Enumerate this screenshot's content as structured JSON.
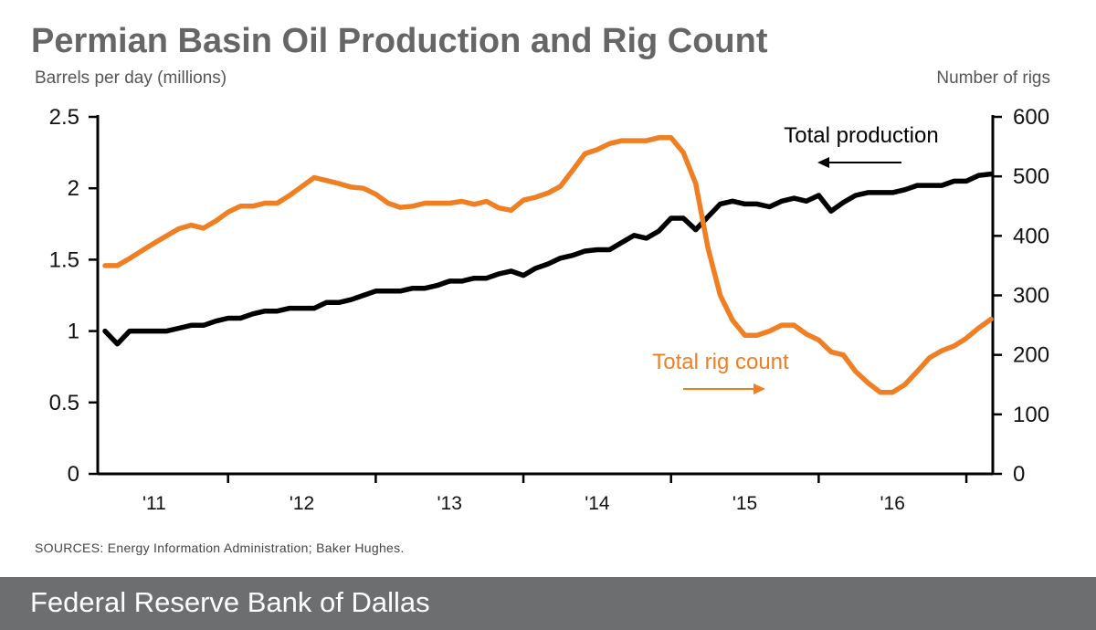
{
  "chart_data": {
    "type": "line",
    "title": "Permian Basin Oil Production and Rig Count",
    "ylabel_left": "Barrels per day (millions)",
    "ylabel_right": "Number of rigs",
    "xlim": [
      "2010-09",
      "2016-09"
    ],
    "x_tick_labels": [
      "'11",
      "'12",
      "'13",
      "'14",
      "'15",
      "'16"
    ],
    "x_tick_positions": [
      "2011-01",
      "2012-01",
      "2013-01",
      "2014-01",
      "2015-01",
      "2016-01"
    ],
    "y_left": {
      "lim": [
        0,
        2.5
      ],
      "ticks": [
        0,
        0.5,
        1,
        1.5,
        2,
        2.5
      ],
      "tick_labels": [
        "0",
        "0.5",
        "1",
        "1.5",
        "2",
        "2.5"
      ]
    },
    "y_right": {
      "lim": [
        0,
        600
      ],
      "ticks": [
        0,
        100,
        200,
        300,
        400,
        500,
        600
      ],
      "tick_labels": [
        "0",
        "100",
        "200",
        "300",
        "400",
        "500",
        "600"
      ]
    },
    "grid": false,
    "legend": "none",
    "series": [
      {
        "name": "Total production",
        "axis": "left",
        "color": "#000000",
        "x": [
          "2010-09",
          "2010-10",
          "2010-11",
          "2010-12",
          "2011-01",
          "2011-02",
          "2011-03",
          "2011-04",
          "2011-05",
          "2011-06",
          "2011-07",
          "2011-08",
          "2011-09",
          "2011-10",
          "2011-11",
          "2011-12",
          "2012-01",
          "2012-02",
          "2012-03",
          "2012-04",
          "2012-05",
          "2012-06",
          "2012-07",
          "2012-08",
          "2012-09",
          "2012-10",
          "2012-11",
          "2012-12",
          "2013-01",
          "2013-02",
          "2013-03",
          "2013-04",
          "2013-05",
          "2013-06",
          "2013-07",
          "2013-08",
          "2013-09",
          "2013-10",
          "2013-11",
          "2013-12",
          "2014-01",
          "2014-02",
          "2014-03",
          "2014-04",
          "2014-05",
          "2014-06",
          "2014-07",
          "2014-08",
          "2014-09",
          "2014-10",
          "2014-11",
          "2014-12",
          "2015-01",
          "2015-02",
          "2015-03",
          "2015-04",
          "2015-05",
          "2015-06",
          "2015-07",
          "2015-08",
          "2015-09",
          "2015-10",
          "2015-11",
          "2015-12",
          "2016-01",
          "2016-02",
          "2016-03",
          "2016-04",
          "2016-05",
          "2016-06",
          "2016-07",
          "2016-08",
          "2016-09"
        ],
        "values": [
          1.0,
          0.91,
          1.0,
          1.0,
          1.0,
          1.0,
          1.02,
          1.04,
          1.04,
          1.07,
          1.09,
          1.09,
          1.12,
          1.14,
          1.14,
          1.16,
          1.16,
          1.16,
          1.2,
          1.2,
          1.22,
          1.25,
          1.28,
          1.28,
          1.28,
          1.3,
          1.3,
          1.32,
          1.35,
          1.35,
          1.37,
          1.37,
          1.4,
          1.42,
          1.39,
          1.44,
          1.47,
          1.51,
          1.53,
          1.56,
          1.57,
          1.57,
          1.62,
          1.67,
          1.65,
          1.7,
          1.79,
          1.79,
          1.71,
          1.8,
          1.89,
          1.91,
          1.89,
          1.89,
          1.87,
          1.91,
          1.93,
          1.91,
          1.95,
          1.84,
          1.9,
          1.95,
          1.97,
          1.97,
          1.97,
          1.99,
          2.02,
          2.02,
          2.02,
          2.05,
          2.05,
          2.09,
          2.1
        ]
      },
      {
        "name": "Total rig count",
        "axis": "right",
        "color": "#f07f24",
        "x": [
          "2010-09",
          "2010-10",
          "2010-11",
          "2010-12",
          "2011-01",
          "2011-02",
          "2011-03",
          "2011-04",
          "2011-05",
          "2011-06",
          "2011-07",
          "2011-08",
          "2011-09",
          "2011-10",
          "2011-11",
          "2011-12",
          "2012-01",
          "2012-02",
          "2012-03",
          "2012-04",
          "2012-05",
          "2012-06",
          "2012-07",
          "2012-08",
          "2012-09",
          "2012-10",
          "2012-11",
          "2012-12",
          "2013-01",
          "2013-02",
          "2013-03",
          "2013-04",
          "2013-05",
          "2013-06",
          "2013-07",
          "2013-08",
          "2013-09",
          "2013-10",
          "2013-11",
          "2013-12",
          "2014-01",
          "2014-02",
          "2014-03",
          "2014-04",
          "2014-05",
          "2014-06",
          "2014-07",
          "2014-08",
          "2014-09",
          "2014-10",
          "2014-11",
          "2014-12",
          "2015-01",
          "2015-02",
          "2015-03",
          "2015-04",
          "2015-05",
          "2015-06",
          "2015-07",
          "2015-08",
          "2015-09",
          "2015-10",
          "2015-11",
          "2015-12",
          "2016-01",
          "2016-02",
          "2016-03",
          "2016-04",
          "2016-05",
          "2016-06",
          "2016-07",
          "2016-08",
          "2016-09"
        ],
        "values": [
          350,
          350,
          362,
          375,
          388,
          400,
          412,
          418,
          413,
          425,
          440,
          450,
          450,
          455,
          455,
          468,
          483,
          498,
          493,
          488,
          482,
          480,
          470,
          455,
          448,
          450,
          455,
          455,
          455,
          458,
          453,
          458,
          447,
          443,
          460,
          465,
          472,
          483,
          510,
          538,
          545,
          555,
          560,
          560,
          560,
          565,
          565,
          540,
          488,
          380,
          300,
          258,
          233,
          233,
          240,
          250,
          250,
          235,
          225,
          205,
          200,
          172,
          153,
          137,
          137,
          150,
          172,
          195,
          207,
          215,
          228,
          245,
          260
        ]
      }
    ],
    "annotations": [
      {
        "text": "Total production",
        "arrow": "left"
      },
      {
        "text": "Total rig count",
        "arrow": "right"
      }
    ]
  },
  "header": {
    "title": "Permian Basin Oil Production and Rig Count",
    "left_axis_label": "Barrels per day (millions)",
    "right_axis_label": "Number of rigs"
  },
  "source": "SOURCES: Energy Information Administration; Baker Hughes.",
  "footer": {
    "text": "Federal Reserve Bank of Dallas",
    "bg_color": "#6d6e70"
  }
}
